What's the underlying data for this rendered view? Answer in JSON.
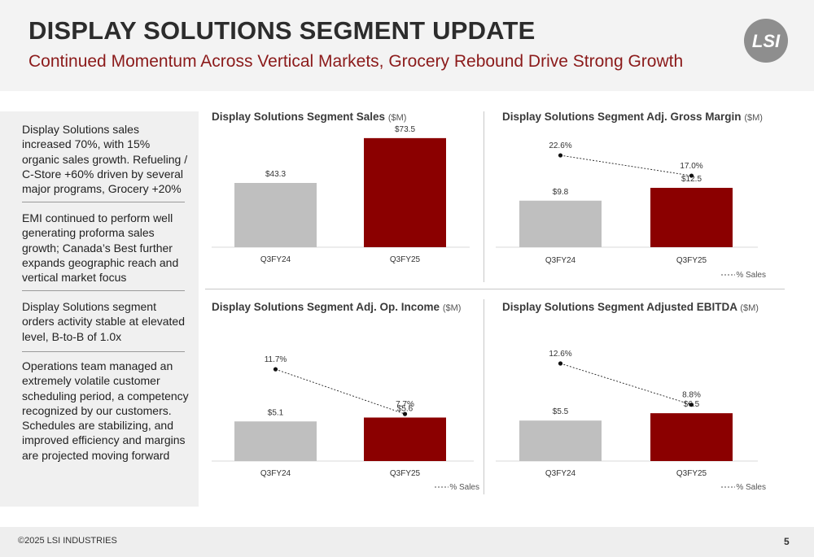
{
  "header": {
    "title": "DISPLAY SOLUTIONS SEGMENT UPDATE",
    "subtitle": "Continued Momentum Across Vertical Markets, Grocery Rebound Drive Strong Growth",
    "logo_text": "LSI"
  },
  "sidebar": {
    "bullets": [
      "Display Solutions sales increased 70%, with 15% organic sales growth.  Refueling / C-Store +60% driven by several major programs, Grocery +20%",
      "EMI continued to perform well generating proforma sales growth; Canada’s Best further expands geographic reach and vertical market focus",
      "Display Solutions segment orders activity stable at elevated level, B-to-B of 1.0x",
      "Operations team managed an extremely volatile customer scheduling period, a competency recognized by our customers.  Schedules are stabilizing, and improved efficiency and margins are projected moving forward"
    ]
  },
  "colors": {
    "prior": "#bfbfbf",
    "current": "#8b0000",
    "accent": "#8b1a1a"
  },
  "chart_data": [
    {
      "type": "bar",
      "title": "Display Solutions Segment Sales",
      "unit": "($M)",
      "categories": [
        "Q3FY24",
        "Q3FY25"
      ],
      "values": [
        43.3,
        73.5
      ],
      "value_labels": [
        "$43.3",
        "$73.5"
      ],
      "ylim": [
        0,
        80
      ]
    },
    {
      "type": "bar",
      "title": "Display Solutions Segment Adj. Gross Margin",
      "unit": "($M)",
      "categories": [
        "Q3FY24",
        "Q3FY25"
      ],
      "values": [
        9.8,
        12.5
      ],
      "value_labels": [
        "$9.8",
        "$12.5"
      ],
      "ylim": [
        0,
        25
      ],
      "pct_sales": [
        22.6,
        17.0
      ],
      "pct_labels": [
        "22.6%",
        "17.0%"
      ],
      "pct_range": [
        0,
        30
      ],
      "legend": "% Sales"
    },
    {
      "type": "bar",
      "title": "Display Solutions Segment Adj. Op. Income",
      "unit": "($M)",
      "categories": [
        "Q3FY24",
        "Q3FY25"
      ],
      "values": [
        5.1,
        5.6
      ],
      "value_labels": [
        "$5.1",
        "$5.6"
      ],
      "ylim": [
        0,
        18
      ],
      "pct_sales": [
        11.7,
        7.7
      ],
      "pct_labels": [
        "11.7%",
        "7.7%"
      ],
      "pct_range": [
        0,
        16
      ],
      "legend": "% Sales"
    },
    {
      "type": "bar",
      "title": "Display Solutions Segment Adjusted EBITDA",
      "unit": "($M)",
      "categories": [
        "Q3FY24",
        "Q3FY25"
      ],
      "values": [
        5.5,
        6.5
      ],
      "value_labels": [
        "$5.5",
        "$6.5"
      ],
      "ylim": [
        0,
        19
      ],
      "pct_sales": [
        12.6,
        8.8
      ],
      "pct_labels": [
        "12.6%",
        "8.8%"
      ],
      "pct_range": [
        0,
        16.5
      ],
      "legend": "% Sales"
    }
  ],
  "footer": {
    "copyright": "©2025 LSI INDUSTRIES",
    "page": "5"
  }
}
